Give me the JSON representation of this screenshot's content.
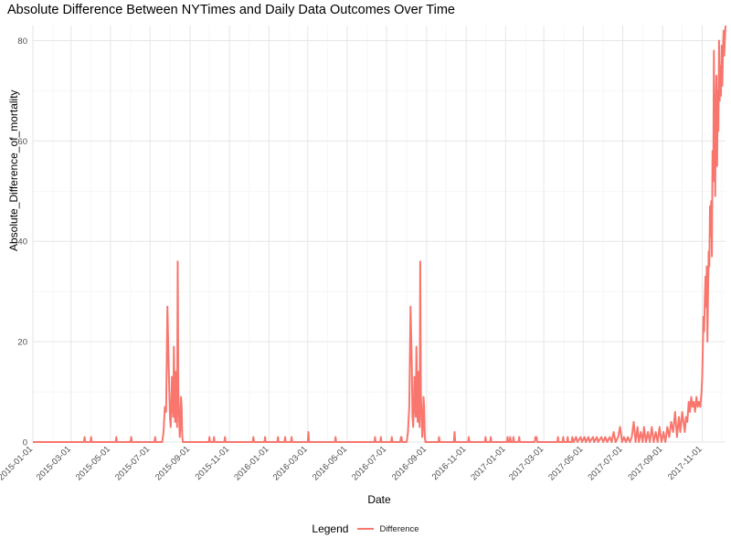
{
  "chart_data": {
    "type": "line",
    "title": "Absolute Difference Between NYTimes and Daily Data Outcomes Over Time",
    "xlabel": "Date",
    "ylabel": "Absolute_Difference_of_mortality",
    "xlim": [
      "2015-01-01",
      "2017-12-07"
    ],
    "ylim": [
      0,
      83
    ],
    "x_ticks": [
      "2015-01-01",
      "2015-03-01",
      "2015-05-01",
      "2015-07-01",
      "2015-09-01",
      "2015-11-01",
      "2016-01-01",
      "2016-03-01",
      "2016-05-01",
      "2016-07-01",
      "2016-09-01",
      "2016-11-01",
      "2017-01-01",
      "2017-03-01",
      "2017-05-01",
      "2017-07-01",
      "2017-09-01",
      "2017-11-01"
    ],
    "y_ticks": [
      0,
      20,
      40,
      60,
      80
    ],
    "grid": true,
    "legend": {
      "title": "Legend",
      "position": "bottom",
      "entries": [
        "Difference"
      ]
    },
    "series": [
      {
        "name": "Difference",
        "color": "#F8766D",
        "points": [
          [
            "2015-01-01",
            0
          ],
          [
            "2015-03-21",
            0
          ],
          [
            "2015-03-22",
            1
          ],
          [
            "2015-03-23",
            0
          ],
          [
            "2015-03-31",
            0
          ],
          [
            "2015-04-01",
            1
          ],
          [
            "2015-04-02",
            0
          ],
          [
            "2015-05-09",
            0
          ],
          [
            "2015-05-10",
            1
          ],
          [
            "2015-05-11",
            0
          ],
          [
            "2015-06-01",
            0
          ],
          [
            "2015-06-02",
            1
          ],
          [
            "2015-06-03",
            0
          ],
          [
            "2015-07-08",
            0
          ],
          [
            "2015-07-09",
            1
          ],
          [
            "2015-07-10",
            0
          ],
          [
            "2015-07-20",
            0
          ],
          [
            "2015-07-22",
            2
          ],
          [
            "2015-07-24",
            7
          ],
          [
            "2015-07-26",
            6
          ],
          [
            "2015-07-28",
            27
          ],
          [
            "2015-07-30",
            15
          ],
          [
            "2015-08-01",
            5
          ],
          [
            "2015-08-02",
            3
          ],
          [
            "2015-08-03",
            7
          ],
          [
            "2015-08-04",
            13
          ],
          [
            "2015-08-05",
            8
          ],
          [
            "2015-08-06",
            5
          ],
          [
            "2015-08-07",
            19
          ],
          [
            "2015-08-08",
            10
          ],
          [
            "2015-08-09",
            4
          ],
          [
            "2015-08-10",
            14
          ],
          [
            "2015-08-11",
            8
          ],
          [
            "2015-08-12",
            3
          ],
          [
            "2015-08-13",
            36
          ],
          [
            "2015-08-14",
            10
          ],
          [
            "2015-08-15",
            5
          ],
          [
            "2015-08-16",
            1
          ],
          [
            "2015-08-17",
            3
          ],
          [
            "2015-08-18",
            9
          ],
          [
            "2015-08-19",
            7
          ],
          [
            "2015-08-20",
            1
          ],
          [
            "2015-08-21",
            0
          ],
          [
            "2015-09-30",
            0
          ],
          [
            "2015-10-01",
            1
          ],
          [
            "2015-10-02",
            0
          ],
          [
            "2015-10-07",
            0
          ],
          [
            "2015-10-08",
            1
          ],
          [
            "2015-10-09",
            0
          ],
          [
            "2015-10-24",
            0
          ],
          [
            "2015-10-25",
            1
          ],
          [
            "2015-10-26",
            0
          ],
          [
            "2015-12-07",
            0
          ],
          [
            "2015-12-08",
            1
          ],
          [
            "2015-12-09",
            0
          ],
          [
            "2015-12-25",
            0
          ],
          [
            "2015-12-26",
            1
          ],
          [
            "2015-12-27",
            0
          ],
          [
            "2016-01-14",
            0
          ],
          [
            "2016-01-15",
            1
          ],
          [
            "2016-01-16",
            0
          ],
          [
            "2016-01-25",
            0
          ],
          [
            "2016-01-26",
            1
          ],
          [
            "2016-01-27",
            0
          ],
          [
            "2016-02-04",
            0
          ],
          [
            "2016-02-05",
            1
          ],
          [
            "2016-02-06",
            0
          ],
          [
            "2016-03-01",
            0
          ],
          [
            "2016-03-02",
            2
          ],
          [
            "2016-03-03",
            0
          ],
          [
            "2016-04-12",
            0
          ],
          [
            "2016-04-13",
            1
          ],
          [
            "2016-04-14",
            0
          ],
          [
            "2016-06-12",
            0
          ],
          [
            "2016-06-13",
            1
          ],
          [
            "2016-06-14",
            0
          ],
          [
            "2016-06-21",
            0
          ],
          [
            "2016-06-22",
            1
          ],
          [
            "2016-06-23",
            0
          ],
          [
            "2016-07-08",
            0
          ],
          [
            "2016-07-09",
            1
          ],
          [
            "2016-07-10",
            0
          ],
          [
            "2016-07-22",
            0
          ],
          [
            "2016-07-23",
            1
          ],
          [
            "2016-07-24",
            1
          ],
          [
            "2016-07-25",
            0
          ],
          [
            "2016-08-01",
            0
          ],
          [
            "2016-08-03",
            2
          ],
          [
            "2016-08-05",
            7
          ],
          [
            "2016-08-07",
            27
          ],
          [
            "2016-08-09",
            15
          ],
          [
            "2016-08-10",
            5
          ],
          [
            "2016-08-11",
            3
          ],
          [
            "2016-08-12",
            7
          ],
          [
            "2016-08-13",
            13
          ],
          [
            "2016-08-14",
            8
          ],
          [
            "2016-08-15",
            5
          ],
          [
            "2016-08-16",
            19
          ],
          [
            "2016-08-17",
            10
          ],
          [
            "2016-08-18",
            4
          ],
          [
            "2016-08-19",
            14
          ],
          [
            "2016-08-20",
            8
          ],
          [
            "2016-08-21",
            3
          ],
          [
            "2016-08-22",
            36
          ],
          [
            "2016-08-23",
            10
          ],
          [
            "2016-08-24",
            5
          ],
          [
            "2016-08-25",
            1
          ],
          [
            "2016-08-26",
            3
          ],
          [
            "2016-08-27",
            9
          ],
          [
            "2016-08-28",
            7
          ],
          [
            "2016-08-29",
            1
          ],
          [
            "2016-08-30",
            0
          ],
          [
            "2016-09-19",
            0
          ],
          [
            "2016-09-20",
            1
          ],
          [
            "2016-09-21",
            0
          ],
          [
            "2016-10-13",
            0
          ],
          [
            "2016-10-14",
            2
          ],
          [
            "2016-10-15",
            0
          ],
          [
            "2016-11-04",
            0
          ],
          [
            "2016-11-05",
            1
          ],
          [
            "2016-11-06",
            0
          ],
          [
            "2016-11-30",
            0
          ],
          [
            "2016-12-01",
            1
          ],
          [
            "2016-12-02",
            0
          ],
          [
            "2016-12-08",
            0
          ],
          [
            "2016-12-09",
            1
          ],
          [
            "2016-12-10",
            0
          ],
          [
            "2017-01-03",
            0
          ],
          [
            "2017-01-04",
            1
          ],
          [
            "2017-01-05",
            0
          ],
          [
            "2017-01-07",
            0
          ],
          [
            "2017-01-08",
            1
          ],
          [
            "2017-01-09",
            0
          ],
          [
            "2017-01-12",
            0
          ],
          [
            "2017-01-13",
            1
          ],
          [
            "2017-01-14",
            0
          ],
          [
            "2017-01-21",
            0
          ],
          [
            "2017-01-22",
            1
          ],
          [
            "2017-01-23",
            0
          ],
          [
            "2017-02-15",
            0
          ],
          [
            "2017-02-16",
            1
          ],
          [
            "2017-02-18",
            1
          ],
          [
            "2017-02-19",
            0
          ],
          [
            "2017-03-22",
            0
          ],
          [
            "2017-03-23",
            1
          ],
          [
            "2017-03-24",
            0
          ],
          [
            "2017-03-30",
            0
          ],
          [
            "2017-03-31",
            1
          ],
          [
            "2017-04-01",
            0
          ],
          [
            "2017-04-06",
            0
          ],
          [
            "2017-04-07",
            1
          ],
          [
            "2017-04-08",
            0
          ],
          [
            "2017-04-13",
            0
          ],
          [
            "2017-04-14",
            1
          ],
          [
            "2017-04-16",
            0
          ],
          [
            "2017-04-20",
            1
          ],
          [
            "2017-04-22",
            0
          ],
          [
            "2017-04-27",
            1
          ],
          [
            "2017-04-29",
            0
          ],
          [
            "2017-05-03",
            1
          ],
          [
            "2017-05-05",
            0
          ],
          [
            "2017-05-09",
            1
          ],
          [
            "2017-05-11",
            0
          ],
          [
            "2017-05-16",
            1
          ],
          [
            "2017-05-18",
            0
          ],
          [
            "2017-05-22",
            1
          ],
          [
            "2017-05-24",
            0
          ],
          [
            "2017-05-29",
            1
          ],
          [
            "2017-06-01",
            0
          ],
          [
            "2017-06-04",
            1
          ],
          [
            "2017-06-07",
            0
          ],
          [
            "2017-06-11",
            1
          ],
          [
            "2017-06-14",
            0
          ],
          [
            "2017-06-17",
            2
          ],
          [
            "2017-06-20",
            0
          ],
          [
            "2017-06-24",
            1
          ],
          [
            "2017-06-27",
            3
          ],
          [
            "2017-06-30",
            0
          ],
          [
            "2017-07-03",
            1
          ],
          [
            "2017-07-06",
            0
          ],
          [
            "2017-07-09",
            1
          ],
          [
            "2017-07-12",
            0
          ],
          [
            "2017-07-15",
            1
          ],
          [
            "2017-07-18",
            4
          ],
          [
            "2017-07-21",
            0
          ],
          [
            "2017-07-24",
            3
          ],
          [
            "2017-07-26",
            0
          ],
          [
            "2017-07-29",
            2
          ],
          [
            "2017-08-01",
            0
          ],
          [
            "2017-08-03",
            3
          ],
          [
            "2017-08-06",
            0
          ],
          [
            "2017-08-09",
            2
          ],
          [
            "2017-08-12",
            0
          ],
          [
            "2017-08-15",
            3
          ],
          [
            "2017-08-18",
            0
          ],
          [
            "2017-08-21",
            2
          ],
          [
            "2017-08-24",
            0
          ],
          [
            "2017-08-27",
            3
          ],
          [
            "2017-08-30",
            0
          ],
          [
            "2017-09-02",
            2
          ],
          [
            "2017-09-05",
            0
          ],
          [
            "2017-09-08",
            3
          ],
          [
            "2017-09-11",
            1
          ],
          [
            "2017-09-14",
            4
          ],
          [
            "2017-09-17",
            2
          ],
          [
            "2017-09-20",
            6
          ],
          [
            "2017-09-23",
            1
          ],
          [
            "2017-09-26",
            5
          ],
          [
            "2017-09-28",
            2
          ],
          [
            "2017-10-01",
            6
          ],
          [
            "2017-10-03",
            4
          ],
          [
            "2017-10-05",
            2
          ],
          [
            "2017-10-07",
            5
          ],
          [
            "2017-10-09",
            4
          ],
          [
            "2017-10-11",
            8
          ],
          [
            "2017-10-13",
            6
          ],
          [
            "2017-10-15",
            9
          ],
          [
            "2017-10-17",
            7
          ],
          [
            "2017-10-19",
            8
          ],
          [
            "2017-10-21",
            6
          ],
          [
            "2017-10-23",
            9
          ],
          [
            "2017-10-25",
            7
          ],
          [
            "2017-10-27",
            8
          ],
          [
            "2017-10-29",
            7
          ],
          [
            "2017-10-31",
            10
          ],
          [
            "2017-11-01",
            13
          ],
          [
            "2017-11-02",
            19
          ],
          [
            "2017-11-03",
            25
          ],
          [
            "2017-11-04",
            22
          ],
          [
            "2017-11-05",
            29
          ],
          [
            "2017-11-06",
            33
          ],
          [
            "2017-11-07",
            27
          ],
          [
            "2017-11-08",
            35
          ],
          [
            "2017-11-09",
            20
          ],
          [
            "2017-11-10",
            30
          ],
          [
            "2017-11-11",
            38
          ],
          [
            "2017-11-12",
            35
          ],
          [
            "2017-11-13",
            47
          ],
          [
            "2017-11-14",
            41
          ],
          [
            "2017-11-15",
            48
          ],
          [
            "2017-11-16",
            37
          ],
          [
            "2017-11-17",
            58
          ],
          [
            "2017-11-18",
            52
          ],
          [
            "2017-11-19",
            78
          ],
          [
            "2017-11-20",
            60
          ],
          [
            "2017-11-21",
            49
          ],
          [
            "2017-11-22",
            67
          ],
          [
            "2017-11-23",
            73
          ],
          [
            "2017-11-24",
            55
          ],
          [
            "2017-11-25",
            70
          ],
          [
            "2017-11-26",
            62
          ],
          [
            "2017-11-27",
            80
          ],
          [
            "2017-11-28",
            68
          ],
          [
            "2017-11-29",
            75
          ],
          [
            "2017-11-30",
            69
          ],
          [
            "2017-12-01",
            79
          ],
          [
            "2017-12-02",
            71
          ],
          [
            "2017-12-03",
            78
          ],
          [
            "2017-12-04",
            82
          ],
          [
            "2017-12-05",
            77
          ],
          [
            "2017-12-06",
            80
          ],
          [
            "2017-12-07",
            83
          ]
        ]
      }
    ]
  }
}
